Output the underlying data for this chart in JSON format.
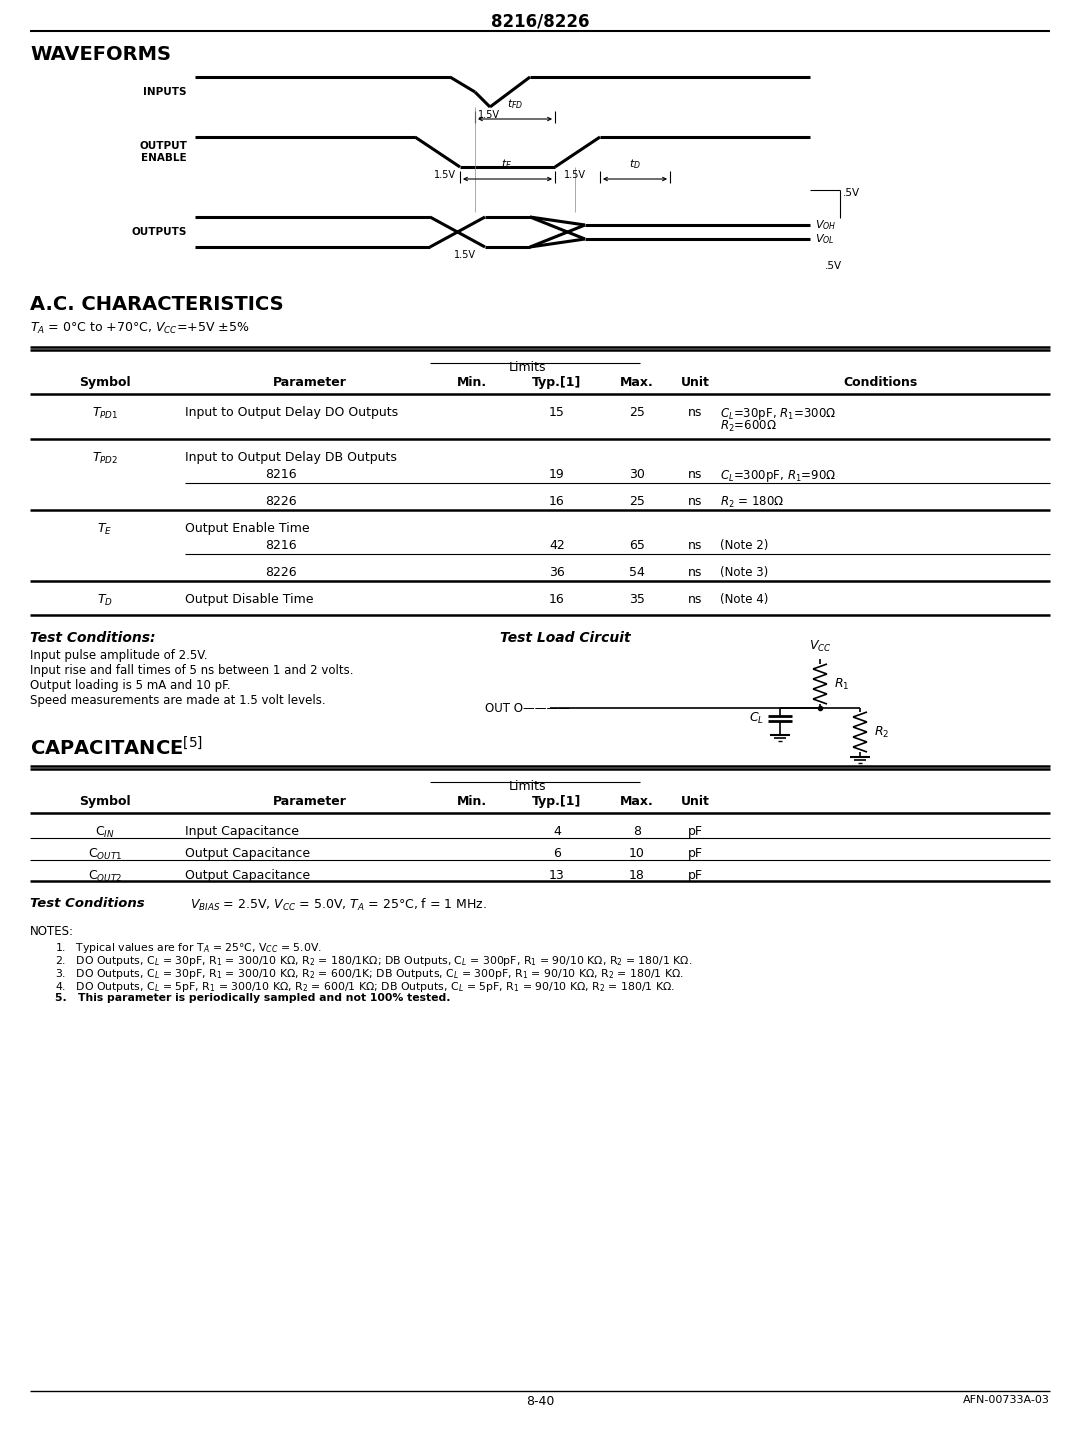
{
  "title": "8216/8226",
  "page_number": "8-40",
  "page_ref": "AFN-00733A-03",
  "bg_color": "#ffffff",
  "ac_table": {
    "rows": [
      {
        "symbol": "T$_{PD1}$",
        "parameter": "Input to Output Delay DO Outputs",
        "sub": [],
        "typ": "15",
        "max": "25",
        "unit": "ns",
        "cond1": "C$_L$=30pF, R$_1$=300Ω",
        "cond2": "R$_2$=600Ω"
      },
      {
        "symbol": "T$_{PD2}$",
        "parameter": "Input to Output Delay DB Outputs",
        "sub": [
          {
            "name": "8216",
            "typ": "19",
            "max": "30",
            "unit": "ns",
            "cond": "C$_L$=300pF, R$_1$=90Ω"
          },
          {
            "name": "8226",
            "typ": "16",
            "max": "25",
            "unit": "ns",
            "cond": "R$_2$ = 180Ω"
          }
        ]
      },
      {
        "symbol": "T$_E$",
        "parameter": "Output Enable Time",
        "sub": [
          {
            "name": "8216",
            "typ": "42",
            "max": "65",
            "unit": "ns",
            "cond": "(Note 2)"
          },
          {
            "name": "8226",
            "typ": "36",
            "max": "54",
            "unit": "ns",
            "cond": "(Note 3)"
          }
        ]
      },
      {
        "symbol": "T$_D$",
        "parameter": "Output Disable Time",
        "sub": [],
        "typ": "16",
        "max": "35",
        "unit": "ns",
        "cond1": "(Note 4)",
        "cond2": ""
      }
    ]
  },
  "test_conditions_lines": [
    "Input pulse amplitude of 2.5V.",
    "Input rise and fall times of 5 ns between 1 and 2 volts.",
    "Output loading is 5 mA and 10 pF.",
    "Speed measurements are made at 1.5 volt levels."
  ],
  "cap_rows": [
    {
      "symbol": "C$_{IN}$",
      "parameter": "Input Capacitance",
      "typ": "4",
      "max": "8",
      "unit": "pF"
    },
    {
      "symbol": "C$_{OUT1}$",
      "parameter": "Output Capacitance",
      "typ": "6",
      "max": "10",
      "unit": "pF"
    },
    {
      "symbol": "C$_{OUT2}$",
      "parameter": "Output Capacitance",
      "typ": "13",
      "max": "18",
      "unit": "pF"
    }
  ],
  "notes": [
    "1.   Typical values are for T$_A$ = 25°C, V$_{CC}$ = 5.0V.",
    "2.   DO Outputs, C$_L$ = 30pF, R$_1$ = 300/10 KΩ, R$_2$ = 180/1KΩ; DB Outputs, C$_L$ = 300pF, R$_1$ = 90/10 KΩ, R$_2$ = 180/1 KΩ.",
    "3.   DO Outputs, C$_L$ = 30pF, R$_1$ = 300/10 KΩ, R$_2$ = 600/1K; DB Outputs, C$_L$ = 300pF, R$_1$ = 90/10 KΩ, R$_2$ = 180/1 KΩ.",
    "4.   DO Outputs, C$_L$ = 5pF, R$_1$ = 300/10 KΩ, R$_2$ = 600/1 KΩ; DB Outputs, C$_L$ = 5pF, R$_1$ = 90/10 KΩ, R$_2$ = 180/1 KΩ.",
    "5.   This parameter is periodically sampled and not 100% tested."
  ]
}
